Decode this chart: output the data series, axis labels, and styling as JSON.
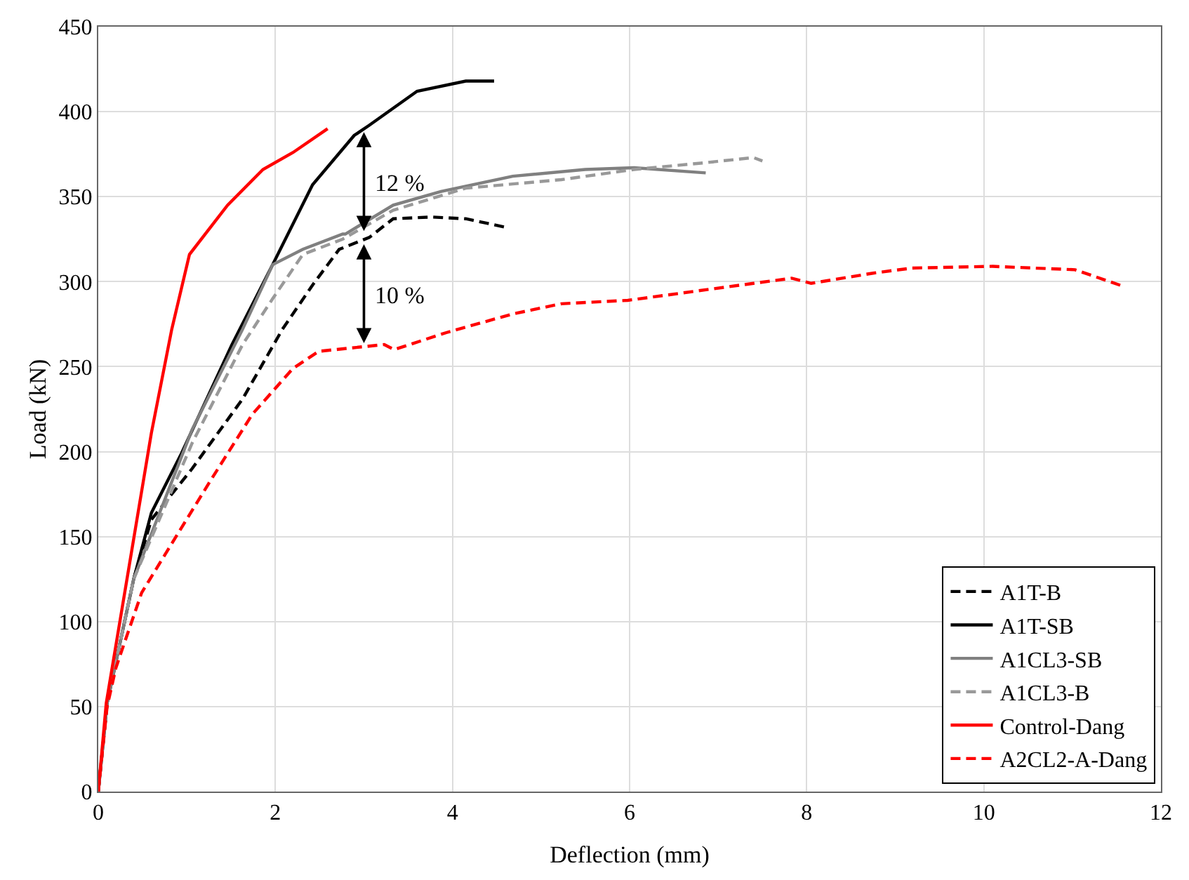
{
  "chart_data": {
    "type": "line",
    "xlabel": "Deflection (mm)",
    "ylabel": "Load (kN)",
    "xlim": [
      0,
      12
    ],
    "xticks": [
      0,
      2,
      4,
      6,
      8,
      10,
      12
    ],
    "ylim": [
      0,
      450
    ],
    "yticks": [
      0,
      50,
      100,
      150,
      200,
      250,
      300,
      350,
      400,
      450
    ],
    "grid": true,
    "legend": "bottom right",
    "marker": "none",
    "series": [
      {
        "name": "A1T-B",
        "color": "#000000",
        "line_style": "dashed",
        "x": [
          0,
          0.1,
          0.4,
          0.6,
          1.06,
          1.63,
          2.08,
          2.42,
          2.72,
          3.06,
          3.33,
          3.77,
          4.15,
          4.6
        ],
        "values": [
          0,
          52,
          125,
          160,
          190,
          231,
          272,
          298,
          319,
          326,
          337,
          338,
          337,
          332
        ]
      },
      {
        "name": "A1T-SB",
        "color": "#000000",
        "line_style": "solid",
        "x": [
          0,
          0.1,
          0.4,
          0.6,
          0.94,
          1.51,
          1.97,
          2.42,
          2.89,
          3.06,
          3.6,
          4.15,
          4.47
        ],
        "values": [
          0,
          52,
          125,
          164,
          199,
          263,
          310,
          357,
          386,
          392,
          412,
          418,
          418
        ]
      },
      {
        "name": "A1CL3-SB",
        "color": "#808080",
        "line_style": "solid",
        "x": [
          0,
          0.1,
          0.4,
          1.06,
          1.63,
          1.97,
          2.31,
          2.76,
          2.79,
          3.33,
          3.87,
          4.68,
          5.5,
          6.05,
          6.86
        ],
        "values": [
          0,
          52,
          125,
          213,
          272,
          310,
          319,
          328,
          328,
          345,
          353,
          362,
          366,
          367,
          364
        ]
      },
      {
        "name": "A1CL3-B",
        "color": "#999999",
        "line_style": "dashed",
        "x": [
          0,
          0.1,
          0.4,
          1.06,
          1.63,
          1.97,
          2.31,
          2.76,
          3.33,
          4.15,
          5.23,
          6.05,
          6.86,
          7.4,
          7.5
        ],
        "values": [
          0,
          52,
          125,
          205,
          263,
          290,
          316,
          325,
          342,
          355,
          360,
          366,
          370,
          373,
          371
        ]
      },
      {
        "name": "Control-Dang",
        "color": "#ff0000",
        "line_style": "solid",
        "x": [
          0,
          0.09,
          0.6,
          0.83,
          1.03,
          1.46,
          1.86,
          2.2,
          2.59
        ],
        "values": [
          0,
          52,
          211,
          272,
          316,
          345,
          366,
          376,
          390
        ]
      },
      {
        "name": "A2CL2-A-Dang",
        "color": "#ff0000",
        "line_style": "dashed",
        "x": [
          0,
          0.1,
          0.2,
          0.49,
          0.89,
          1.28,
          1.74,
          2.2,
          2.49,
          3.23,
          3.34,
          3.93,
          4.68,
          5.23,
          5.98,
          7.4,
          7.83,
          8.05,
          8.75,
          9.19,
          10.1,
          11.03,
          11.59
        ],
        "values": [
          0,
          50,
          73,
          117,
          151,
          184,
          222,
          249,
          259,
          263,
          260,
          270,
          281,
          287,
          289,
          299,
          302,
          299,
          305,
          308,
          309,
          307,
          297
        ]
      }
    ],
    "annotations": [
      {
        "text": "12 %",
        "x": 3,
        "y": 388
      },
      {
        "text": "10 %",
        "x": 3,
        "y": 322
      }
    ]
  }
}
